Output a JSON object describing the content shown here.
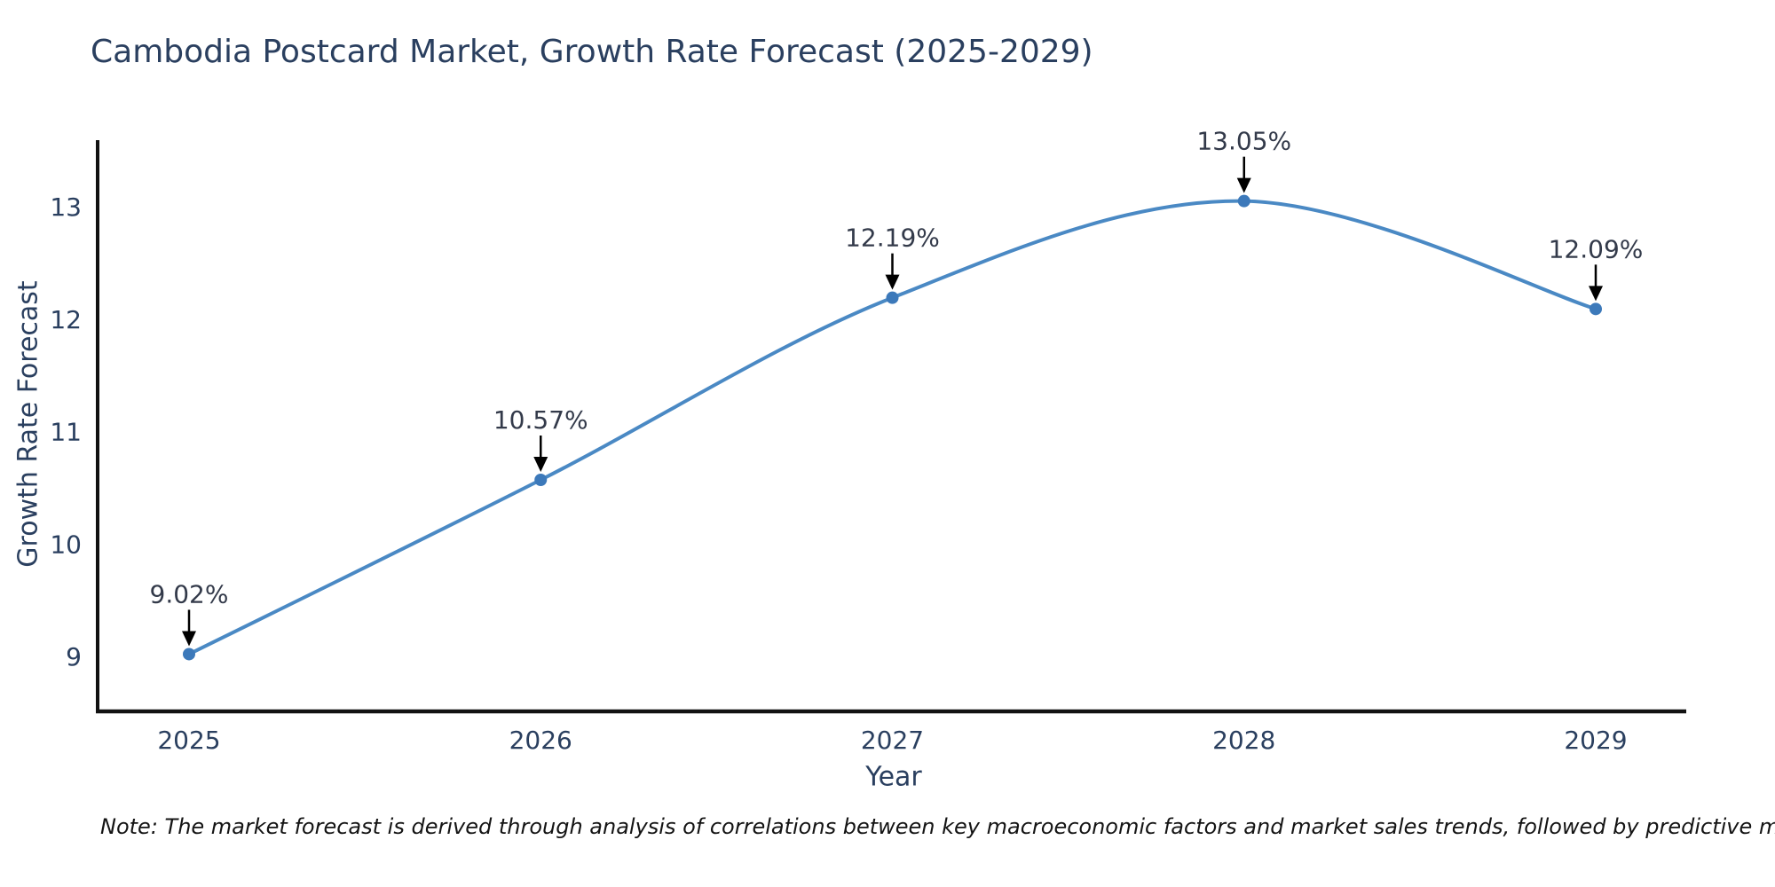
{
  "title": "Cambodia Postcard Market, Growth Rate Forecast (2025-2029)",
  "note": "Note: The market forecast is derived through analysis of correlations between key macroeconomic factors and market sales trends, followed by predictive modeling to project future sales",
  "chart_data": {
    "type": "line",
    "title": "Cambodia Postcard Market, Growth Rate Forecast (2025-2029)",
    "xlabel": "Year",
    "ylabel": "Growth Rate Forecast",
    "x": [
      2025,
      2026,
      2027,
      2028,
      2029
    ],
    "values": [
      9.02,
      10.57,
      12.19,
      13.05,
      12.09
    ],
    "point_labels": [
      "9.02%",
      "10.57%",
      "12.19%",
      "13.05%",
      "12.09%"
    ],
    "x_tick_labels": [
      "2025",
      "2026",
      "2027",
      "2028",
      "2029"
    ],
    "y_ticks": [
      9,
      10,
      11,
      12,
      13
    ],
    "ylim": [
      8.51,
      13.35
    ],
    "line_shape": "spline",
    "grid": false,
    "legend": "none",
    "annotation_arrows": true,
    "colors": {
      "line": "#4a89c4",
      "marker": "#3c79ba",
      "axis_line": "#121212",
      "tick_text": "#2a3f5f",
      "annotation_text": "#333a4a",
      "arrow": "#000000",
      "title_text": "#2a3f5f",
      "background": "#ffffff"
    }
  }
}
